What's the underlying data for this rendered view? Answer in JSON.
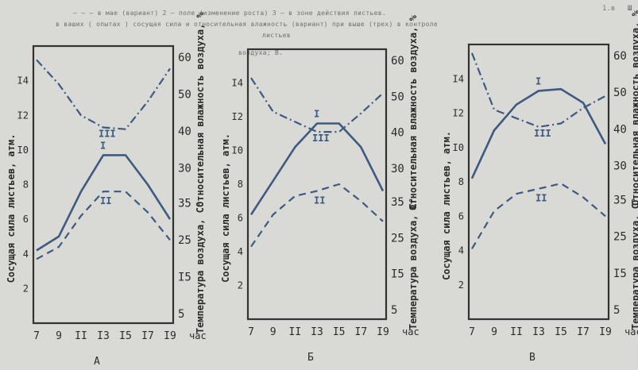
{
  "header": {
    "line1": "— — — в мае (вариант) 2 — поле (изменение роста) 3 — в зоне действия листьев.",
    "line2": "в ваших ( опытах ) сосущая сила и относительная влажность (вариант) при выше (трех) в контроле",
    "line3": "листьев",
    "line4": "воздуха; В.",
    "corner": "1.в",
    "right_mark": "Ш"
  },
  "chart_data": [
    {
      "type": "line",
      "panel_label": "А",
      "x": [
        7,
        9,
        11,
        13,
        15,
        17,
        19
      ],
      "x_ticks": [
        "7",
        "9",
        "II",
        "I3",
        "I5",
        "I7",
        "I9"
      ],
      "x_unit": "час",
      "left_axis": {
        "label": "Сосущая сила листьев, атм.",
        "range": [
          0,
          16
        ],
        "ticks": [
          "2",
          "4",
          "6",
          "8",
          "I0",
          "I2",
          "I4"
        ]
      },
      "right_upper_axis": {
        "label": "Относительная влажность воздуха, %",
        "range": [
          30,
          60
        ],
        "ticks": [
          "30",
          "40",
          "50",
          "60"
        ]
      },
      "right_lower_axis": {
        "label": "Температура воздуха, С°",
        "range": [
          5,
          45
        ],
        "ticks": [
          "5",
          "I5",
          "25",
          "35"
        ]
      },
      "series": [
        {
          "name": "I",
          "style": "solid",
          "values": [
            4.2,
            5.0,
            7.6,
            9.7,
            9.7,
            8.0,
            6.0
          ]
        },
        {
          "name": "II",
          "style": "dashed",
          "values": [
            3.7,
            4.4,
            6.2,
            7.6,
            7.6,
            6.4,
            4.8
          ]
        },
        {
          "name": "III",
          "style": "dashdot",
          "values": [
            15.2,
            13.8,
            12.0,
            11.3,
            11.2,
            12.8,
            14.7
          ]
        }
      ]
    },
    {
      "type": "line",
      "panel_label": "Б",
      "x": [
        7,
        9,
        11,
        13,
        15,
        17,
        19
      ],
      "x_ticks": [
        "7",
        "9",
        "II",
        "I3",
        "I5",
        "I7",
        "I9"
      ],
      "x_unit": "час",
      "left_axis": {
        "label": "Сосущая сила листьев, атм.",
        "range": [
          0,
          16
        ],
        "ticks": [
          "2",
          "4",
          "6",
          "8",
          "I0",
          "I2",
          "I4"
        ]
      },
      "right_upper_axis": {
        "label": "Относительная влажность воздуха, %",
        "range": [
          30,
          60
        ],
        "ticks": [
          "30",
          "40",
          "50",
          "60"
        ]
      },
      "right_lower_axis": {
        "label": "Температура воздуха, С°",
        "range": [
          5,
          45
        ],
        "ticks": [
          "5",
          "I5",
          "25",
          "35"
        ]
      },
      "series": [
        {
          "name": "I",
          "style": "solid",
          "values": [
            6.2,
            8.2,
            10.2,
            11.6,
            11.6,
            10.2,
            7.6
          ]
        },
        {
          "name": "II",
          "style": "dashed",
          "values": [
            4.3,
            6.2,
            7.3,
            7.6,
            8.0,
            7.0,
            5.8
          ]
        },
        {
          "name": "III",
          "style": "dashdot",
          "values": [
            14.3,
            12.3,
            11.7,
            11.1,
            11.1,
            12.2,
            13.4
          ]
        }
      ]
    },
    {
      "type": "line",
      "panel_label": "В",
      "x": [
        7,
        9,
        11,
        13,
        15,
        17,
        19
      ],
      "x_ticks": [
        "7",
        "9",
        "II",
        "I3",
        "I5",
        "I7",
        "I9"
      ],
      "x_unit": "час",
      "left_axis": {
        "label": "Сосущая сила листьев, атм.",
        "range": [
          0,
          16
        ],
        "ticks": [
          "2",
          "4",
          "6",
          "8",
          "I0",
          "I2",
          "I4"
        ]
      },
      "right_upper_axis": {
        "label": "Относительная влажность воздуха, %",
        "range": [
          30,
          60
        ],
        "ticks": [
          "30",
          "40",
          "50",
          "60"
        ]
      },
      "right_lower_axis": {
        "label": "Температура воздуха, С°",
        "range": [
          5,
          45
        ],
        "ticks": [
          "5",
          "I5",
          "25",
          "35"
        ]
      },
      "series": [
        {
          "name": "I",
          "style": "solid",
          "values": [
            8.2,
            11.0,
            12.5,
            13.3,
            13.4,
            12.6,
            10.2
          ]
        },
        {
          "name": "II",
          "style": "dashed",
          "values": [
            4.1,
            6.3,
            7.3,
            7.6,
            7.9,
            7.1,
            6.0
          ]
        },
        {
          "name": "III",
          "style": "dashdot",
          "values": [
            15.5,
            12.2,
            11.7,
            11.2,
            11.4,
            12.3,
            13.0
          ]
        }
      ]
    }
  ]
}
